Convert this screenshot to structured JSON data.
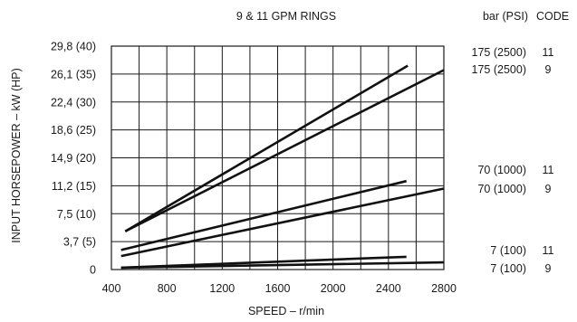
{
  "chart_data": {
    "type": "line",
    "title": "9 & 11 GPM RINGS",
    "xlabel": "SPEED – r/min",
    "ylabel": "INPUT HORSEPOWER – kW (HP)",
    "xlim": [
      400,
      2800
    ],
    "ylim": [
      0,
      29.8
    ],
    "grid": true,
    "x_ticks": [
      400,
      800,
      1200,
      1600,
      2000,
      2400,
      2800
    ],
    "x_tick_labels": [
      "400",
      "800",
      "1200",
      "1600",
      "2000",
      "2400",
      "2800"
    ],
    "y_ticks": [
      0,
      3.7,
      7.5,
      11.2,
      14.9,
      18.6,
      22.4,
      26.1,
      29.8
    ],
    "y_tick_labels": [
      "0",
      "3,7 (5)",
      "7,5 (10)",
      "11,2 (15)",
      "14,9 (20)",
      "18,6 (25)",
      "22,4 (30)",
      "26,1 (35)",
      "29,8 (40)"
    ],
    "right_headers": {
      "pressure": "bar (PSI)",
      "code": "CODE"
    },
    "series": [
      {
        "pressure": "175 (2500)",
        "code": "11",
        "x": [
          500,
          2540
        ],
        "y": [
          5.1,
          27.2
        ]
      },
      {
        "pressure": "175 (2500)",
        "code": "9",
        "x": [
          500,
          2800
        ],
        "y": [
          5.1,
          26.6
        ]
      },
      {
        "pressure": "70 (1000)",
        "code": "11",
        "x": [
          470,
          2530
        ],
        "y": [
          2.6,
          11.8
        ]
      },
      {
        "pressure": "70 (1000)",
        "code": "9",
        "x": [
          470,
          2800
        ],
        "y": [
          1.8,
          10.8
        ]
      },
      {
        "pressure": "7 (100)",
        "code": "11",
        "x": [
          470,
          2530
        ],
        "y": [
          0.25,
          1.7
        ]
      },
      {
        "pressure": "7 (100)",
        "code": "9",
        "x": [
          470,
          2800
        ],
        "y": [
          0.25,
          0.95
        ]
      }
    ]
  }
}
